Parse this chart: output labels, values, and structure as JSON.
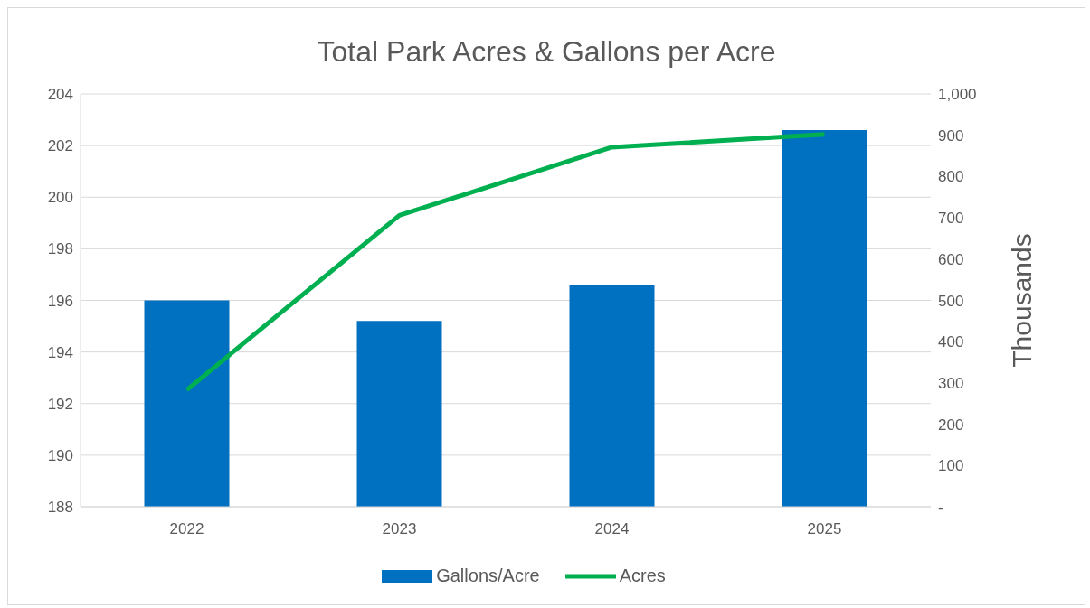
{
  "chart_data": {
    "type": "bar",
    "title": "Total Park Acres & Gallons per Acre",
    "y2label": "Thousands",
    "categories": [
      "2022",
      "2023",
      "2024",
      "2025"
    ],
    "series": [
      {
        "name": "Gallons/Acre",
        "color": "#0070c0",
        "values": [
          196.0,
          195.2,
          196.6,
          202.6
        ]
      },
      {
        "name": "Acres",
        "type": "line",
        "axis": "y2",
        "color": "#00b050",
        "values": [
          283,
          706,
          871,
          902
        ]
      }
    ],
    "ylim": [
      188,
      204
    ],
    "yticks": [
      188,
      190,
      192,
      194,
      196,
      198,
      200,
      202,
      204
    ],
    "y2lim": [
      0,
      1000
    ],
    "y2ticks": [
      {
        "value": 0,
        "label": "-"
      },
      100,
      200,
      300,
      400,
      500,
      600,
      700,
      800,
      900,
      {
        "value": 1000,
        "label": "1,000"
      }
    ],
    "grid": "y",
    "legend": "bottom",
    "marker": "none"
  }
}
